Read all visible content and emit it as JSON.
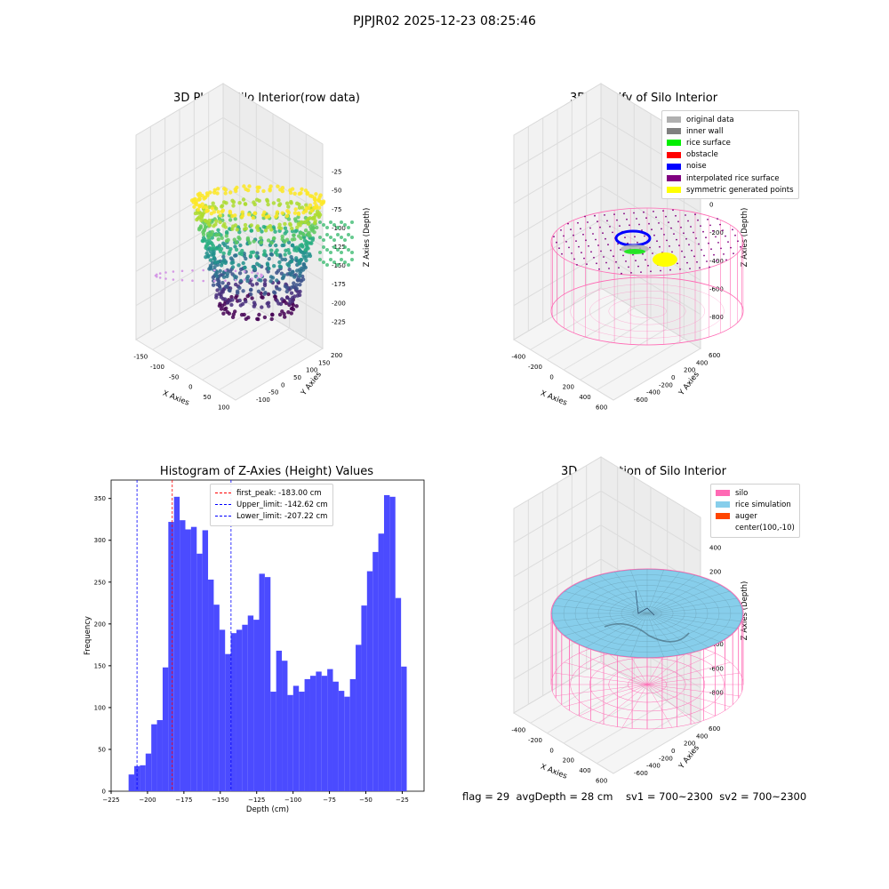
{
  "figure": {
    "suptitle": "PJPJR02 2025-12-23 08:25:46",
    "footer": "flag = 29  avgDepth = 28 cm    sv1 = 700~2300  sv2 = 700~2300"
  },
  "colors": {
    "silo": "#ff69b4",
    "rice_simulation": "#87ceeb",
    "auger": "#ff4500",
    "original_data": "#b0b0b0",
    "inner_wall": "#808080",
    "rice_surface": "#00ee00",
    "obstacle": "#ff0000",
    "noise": "#0000ff",
    "interpolated": "#800080",
    "symmetric": "#ffff00",
    "histogram_bar": "#4b4bff"
  },
  "chart_data": [
    {
      "type": "scatter",
      "projection": "3d",
      "title": "3D Plot of Silo Interior(row data)",
      "xlabel": "X Axies",
      "ylabel": "Y Axies",
      "zlabel": "Z Axies (Depth)",
      "xticks": [
        "-150",
        "-100",
        "-50",
        "0",
        "50",
        "100"
      ],
      "yticks": [
        "-100",
        "-50",
        "0",
        "50",
        "100",
        "150",
        "200"
      ],
      "zticks": [
        "-225",
        "-200",
        "-175",
        "-150",
        "-125",
        "-100",
        "-75",
        "-50",
        "-25"
      ],
      "colormap": "viridis",
      "grid": true
    },
    {
      "type": "scatter",
      "projection": "3d",
      "title": "3D classify of Silo Interior",
      "xlabel": "X Axies",
      "ylabel": "Y Axies",
      "zlabel": "Z Axies (Depth)",
      "xticks": [
        "-400",
        "-200",
        "0",
        "200",
        "400",
        "600"
      ],
      "yticks": [
        "-600",
        "-400",
        "-200",
        "0",
        "200",
        "400",
        "600"
      ],
      "zticks": [
        "-800",
        "-600",
        "-400",
        "-200",
        "0",
        "200"
      ],
      "legend_position": "top-right",
      "legend": [
        {
          "label": "original data",
          "color": "#b0b0b0"
        },
        {
          "label": "inner wall",
          "color": "#808080"
        },
        {
          "label": "rice surface",
          "color": "#00ee00"
        },
        {
          "label": "obstacle",
          "color": "#ff0000"
        },
        {
          "label": "noise",
          "color": "#0000ff"
        },
        {
          "label": "interpolated rice surface",
          "color": "#800080"
        },
        {
          "label": "symmetric generated points",
          "color": "#ffff00"
        }
      ],
      "grid": true
    },
    {
      "type": "bar",
      "title": "Histogram of Z-Axies (Height) Values",
      "xlabel": "Depth (cm)",
      "ylabel": "Frequency",
      "xlim": [
        -225,
        -10
      ],
      "ylim": [
        0,
        372
      ],
      "xticks": [
        -225,
        -200,
        -175,
        -150,
        -125,
        -100,
        -75,
        -50,
        -25
      ],
      "yticks": [
        0,
        50,
        100,
        150,
        200,
        250,
        300,
        350
      ],
      "bin_start": -213.0,
      "bin_width": 3.9,
      "values": [
        20,
        30,
        31,
        45,
        80,
        85,
        148,
        322,
        352,
        324,
        313,
        316,
        284,
        312,
        253,
        223,
        193,
        164,
        189,
        193,
        199,
        210,
        205,
        260,
        256,
        119,
        168,
        156,
        115,
        126,
        119,
        134,
        138,
        143,
        138,
        146,
        131,
        120,
        113,
        134,
        175,
        222,
        263,
        286,
        308,
        354,
        352,
        231,
        149
      ],
      "vlines": [
        {
          "label": "first_peak: -183.00 cm",
          "x": -183.0,
          "color": "#ff0000"
        },
        {
          "label": "Upper_limit: -142.62 cm",
          "x": -142.62,
          "color": "#0000ff"
        },
        {
          "label": "Lower_limit: -207.22 cm",
          "x": -207.22,
          "color": "#0000ff"
        }
      ],
      "legend_position": "top-center"
    },
    {
      "type": "surface",
      "projection": "3d",
      "title": "3D simulation of Silo Interior",
      "xlabel": "X Axies",
      "ylabel": "Y Axies",
      "zlabel": "Z Axies (Depth)",
      "xticks": [
        "-400",
        "-200",
        "0",
        "200",
        "400",
        "600"
      ],
      "yticks": [
        "-600",
        "-400",
        "-200",
        "0",
        "200",
        "400",
        "600"
      ],
      "zticks": [
        "-800",
        "-600",
        "-400",
        "-200",
        "0",
        "200",
        "400"
      ],
      "legend_position": "top-right",
      "legend": [
        {
          "label": "silo",
          "color": "#ff69b4"
        },
        {
          "label": "rice simulation",
          "color": "#87ceeb"
        },
        {
          "label": "auger",
          "color": "#ff4500"
        },
        {
          "label": "center(100,-10)",
          "color": ""
        }
      ],
      "grid": true
    }
  ]
}
